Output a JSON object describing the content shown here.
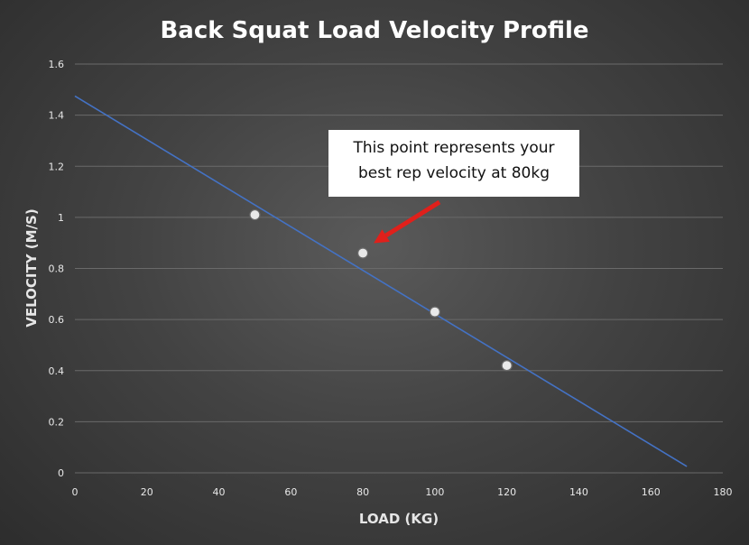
{
  "chart_data": {
    "type": "scatter",
    "title": "Back Squat Load Velocity Profile",
    "xlabel": "LOAD (KG)",
    "ylabel": "VELOCITY (M/S)",
    "xlim": [
      0,
      180
    ],
    "ylim": [
      0,
      1.6
    ],
    "x_ticks": [
      "0",
      "20",
      "40",
      "60",
      "80",
      "100",
      "120",
      "140",
      "160",
      "180"
    ],
    "y_ticks": [
      "0",
      "0.2",
      "0.4",
      "0.6",
      "0.8",
      "1",
      "1.2",
      "1.4",
      "1.6"
    ],
    "grid": {
      "horizontal": true,
      "vertical": false
    },
    "points": [
      {
        "x": 50,
        "y": 1.01
      },
      {
        "x": 80,
        "y": 0.86
      },
      {
        "x": 100,
        "y": 0.63
      },
      {
        "x": 120,
        "y": 0.42
      }
    ],
    "trendline": {
      "type": "linear",
      "start": {
        "x": 0,
        "y": 1.475
      },
      "end": {
        "x": 170,
        "y": 0.025
      },
      "color": "#4472c4"
    },
    "annotation": {
      "lines": [
        "This point represents your",
        "best rep velocity at 80kg"
      ],
      "target_point": {
        "x": 80,
        "y": 0.86
      },
      "arrow_color": "#e0201b"
    }
  }
}
